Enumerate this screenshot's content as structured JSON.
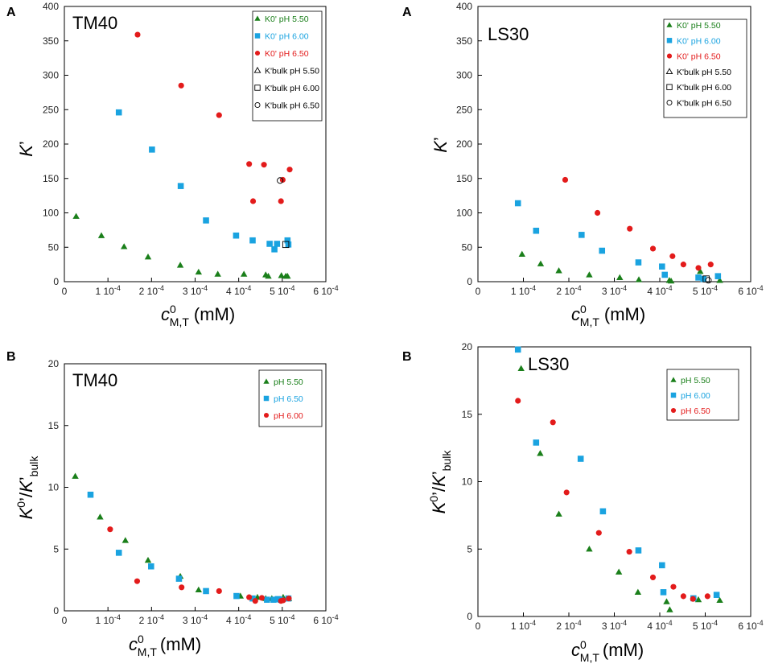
{
  "chart_data": [
    {
      "panel": "A",
      "title": "TM40",
      "type": "scatter",
      "xlabel": "c_M,T^0 (mM)",
      "ylabel": "K'",
      "xlim": [
        0,
        0.0006
      ],
      "ylim": [
        0,
        400
      ],
      "xticks": [
        "0",
        "1 10^-4",
        "2 10^-4",
        "3 10^-4",
        "4 10^-4",
        "5 10^-4",
        "6 10^-4"
      ],
      "yticks": [
        "0",
        "50",
        "100",
        "150",
        "200",
        "250",
        "300",
        "350",
        "400"
      ],
      "legend_position": "top-right",
      "series": [
        {
          "name": "K0' pH 5.50",
          "color": "#1a7f1a",
          "marker": "triangle",
          "filled": true,
          "x": [
            2.7e-05,
            8.5e-05,
            0.000137,
            0.000192,
            0.000266,
            0.000308,
            0.000352,
            0.000412,
            0.000462,
            0.000468,
            0.000498,
            0.000508,
            0.000512
          ],
          "y": [
            95,
            67,
            51,
            36,
            24,
            14,
            11,
            11,
            10,
            8,
            9,
            8,
            8
          ]
        },
        {
          "name": "K0' pH 6.00",
          "color": "#1aa3e0",
          "marker": "square",
          "filled": true,
          "x": [
            0.000125,
            0.000201,
            0.000267,
            0.000325,
            0.000394,
            0.000432,
            0.000471,
            0.000482,
            0.000488,
            0.000512,
            0.000514
          ],
          "y": [
            246,
            192,
            139,
            89,
            67,
            60,
            55,
            47,
            55,
            60,
            54
          ]
        },
        {
          "name": "K0' pH 6.50",
          "color": "#e31b1b",
          "marker": "circle",
          "filled": true,
          "x": [
            0.000168,
            0.000268,
            0.000355,
            0.000424,
            0.000433,
            0.000458,
            0.000497,
            0.000501,
            0.000517
          ],
          "y": [
            359,
            285,
            242,
            171,
            117,
            170,
            117,
            148,
            163
          ]
        },
        {
          "name": "K'bulk pH 5.50",
          "color": "#000000",
          "marker": "triangle",
          "filled": false,
          "x": [],
          "y": []
        },
        {
          "name": "K'bulk pH 6.00",
          "color": "#000000",
          "marker": "square",
          "filled": false,
          "x": [
            0.000508
          ],
          "y": [
            54
          ]
        },
        {
          "name": "K'bulk pH 6.50",
          "color": "#000000",
          "marker": "circle",
          "filled": false,
          "x": [
            0.000495
          ],
          "y": [
            147
          ]
        }
      ]
    },
    {
      "panel": "A",
      "title": "LS30",
      "type": "scatter",
      "xlabel": "c_M,T^0 (mM)",
      "ylabel": "K'",
      "xlim": [
        0,
        0.0006
      ],
      "ylim": [
        0,
        400
      ],
      "xticks": [
        "0",
        "1 10^-4",
        "2 10^-4",
        "3 10^-4",
        "4 10^-4",
        "5 10^-4",
        "6 10^-4"
      ],
      "yticks": [
        "0",
        "50",
        "100",
        "150",
        "200",
        "250",
        "300",
        "350",
        "400"
      ],
      "legend_position": "top-right",
      "series": [
        {
          "name": "K0' pH 5.50",
          "color": "#1a7f1a",
          "marker": "triangle",
          "filled": true,
          "x": [
            9.7e-05,
            0.000138,
            0.000178,
            0.000245,
            0.000312,
            0.000354,
            0.000421,
            0.000425,
            0.000489,
            0.000532
          ],
          "y": [
            40,
            26,
            16,
            10,
            6,
            3,
            2,
            1,
            15,
            2
          ]
        },
        {
          "name": "K0' pH 6.00",
          "color": "#1aa3e0",
          "marker": "square",
          "filled": true,
          "x": [
            8.8e-05,
            0.000128,
            0.000228,
            0.000273,
            0.000353,
            0.000405,
            0.000411,
            0.000485,
            0.000496,
            0.000528
          ],
          "y": [
            114,
            74,
            68,
            45,
            28,
            22,
            10,
            6,
            4,
            8
          ]
        },
        {
          "name": "K0' pH 6.50",
          "color": "#e31b1b",
          "marker": "circle",
          "filled": true,
          "x": [
            0.000192,
            0.000263,
            0.000334,
            0.000385,
            0.000428,
            0.000452,
            0.000485,
            0.000512
          ],
          "y": [
            148,
            100,
            77,
            48,
            37,
            25,
            20,
            25
          ]
        },
        {
          "name": "K'bulk pH 5.50",
          "color": "#000000",
          "marker": "triangle",
          "filled": false,
          "x": [],
          "y": []
        },
        {
          "name": "K'bulk pH 6.00",
          "color": "#000000",
          "marker": "square",
          "filled": false,
          "x": [
            0.000502
          ],
          "y": [
            4
          ]
        },
        {
          "name": "K'bulk pH 6.50",
          "color": "#000000",
          "marker": "circle",
          "filled": false,
          "x": [
            0.000507
          ],
          "y": [
            2
          ]
        }
      ]
    },
    {
      "panel": "B",
      "title": "TM40",
      "type": "scatter",
      "xlabel": "c_M,T^0 (mM)",
      "ylabel": "K0'/K'bulk",
      "xlim": [
        0,
        0.0006
      ],
      "ylim": [
        0,
        20
      ],
      "xticks": [
        "0",
        "1 10^-4",
        "2 10^-4",
        "3 10^-4",
        "4 10^-4",
        "5 10^-4",
        "6 10^-4"
      ],
      "yticks": [
        "0",
        "5",
        "10",
        "15",
        "20"
      ],
      "legend_position": "top-right",
      "series": [
        {
          "name": "pH 5.50",
          "color": "#1a7f1a",
          "marker": "triangle",
          "filled": true,
          "x": [
            2.5e-05,
            8.2e-05,
            0.00014,
            0.000192,
            0.000266,
            0.000308,
            0.000404,
            0.000443,
            0.000462,
            0.000476,
            0.000502,
            0.000515
          ],
          "y": [
            10.9,
            7.6,
            5.7,
            4.1,
            2.8,
            1.7,
            1.2,
            1.1,
            1.0,
            1.0,
            1.1,
            1.0
          ]
        },
        {
          "name": "pH 6.50",
          "color": "#1aa3e0",
          "marker": "square",
          "filled": true,
          "x": [
            6e-05,
            0.000125,
            0.000199,
            0.000263,
            0.000325,
            0.000395,
            0.000432,
            0.000465,
            0.00048,
            0.00049,
            0.000496,
            0.000514
          ],
          "y": [
            9.4,
            4.7,
            3.6,
            2.6,
            1.6,
            1.2,
            1.0,
            0.9,
            0.9,
            0.95,
            0.9,
            1.0
          ]
        },
        {
          "name": "pH 6.00",
          "color": "#e31b1b",
          "marker": "circle",
          "filled": true,
          "x": [
            0.000105,
            0.000167,
            0.000269,
            0.000355,
            0.000424,
            0.000438,
            0.000453,
            0.000497,
            0.000502,
            0.000515
          ],
          "y": [
            6.6,
            2.4,
            1.9,
            1.6,
            1.1,
            0.8,
            1.05,
            0.8,
            0.85,
            1.0
          ]
        }
      ]
    },
    {
      "panel": "B",
      "title": "LS30",
      "type": "scatter",
      "xlabel": "c_M,T^0 (mM)",
      "ylabel": "K0'/K'bulk",
      "xlim": [
        0,
        0.0006
      ],
      "ylim": [
        0,
        20
      ],
      "xticks": [
        "0",
        "1 10^-4",
        "2 10^-4",
        "3 10^-4",
        "4 10^-4",
        "5 10^-4",
        "6 10^-4"
      ],
      "yticks": [
        "0",
        "5",
        "10",
        "15",
        "20"
      ],
      "legend_position": "top-right",
      "series": [
        {
          "name": "pH 5.50",
          "color": "#1a7f1a",
          "marker": "triangle",
          "filled": true,
          "x": [
            9.5e-05,
            0.000137,
            0.000178,
            0.000245,
            0.00031,
            0.000352,
            0.000415,
            0.000422,
            0.000485,
            0.000532
          ],
          "y": [
            18.4,
            12.1,
            7.6,
            5.0,
            3.3,
            1.8,
            1.1,
            0.5,
            1.25,
            1.2
          ]
        },
        {
          "name": "pH 6.00",
          "color": "#1aa3e0",
          "marker": "square",
          "filled": true,
          "x": [
            8.8e-05,
            0.000128,
            0.000226,
            0.000275,
            0.000353,
            0.000405,
            0.000408,
            0.000474,
            0.000525
          ],
          "y": [
            19.8,
            12.9,
            11.7,
            7.8,
            4.9,
            3.8,
            1.8,
            1.35,
            1.6
          ]
        },
        {
          "name": "pH 6.50",
          "color": "#e31b1b",
          "marker": "circle",
          "filled": true,
          "x": [
            8.8e-05,
            0.000165,
            0.000195,
            0.000266,
            0.000333,
            0.000385,
            0.00043,
            0.000452,
            0.000473,
            0.000505
          ],
          "y": [
            16.0,
            14.4,
            9.2,
            6.2,
            4.8,
            2.9,
            2.2,
            1.5,
            1.3,
            1.5
          ]
        }
      ]
    }
  ]
}
